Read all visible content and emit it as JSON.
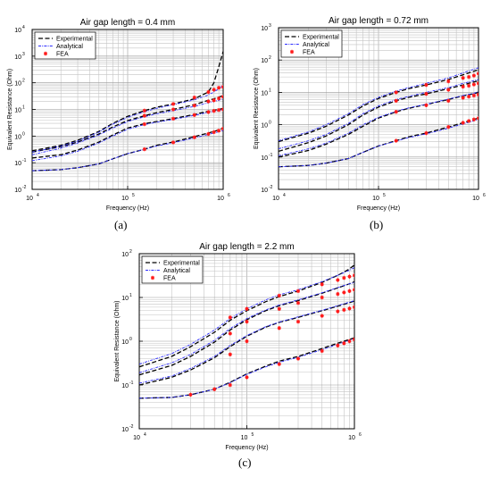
{
  "figure": {
    "panels": [
      {
        "caption": "(a)"
      },
      {
        "caption": "(b)"
      },
      {
        "caption": "(c)"
      }
    ]
  },
  "chart_data": [
    {
      "type": "line",
      "title": "Air gap length = 0.4 mm",
      "xlabel": "Frequency (Hz)",
      "ylabel": "Equivalent Resistance (Ohm)",
      "x_scale": "log",
      "y_scale": "log",
      "xlim": [
        10000,
        1000000
      ],
      "ylim": [
        0.01,
        10000
      ],
      "x_ticks": [
        {
          "value": 10000,
          "base": "10",
          "exp": "4"
        },
        {
          "value": 100000,
          "base": "10",
          "exp": "5"
        },
        {
          "value": 1000000,
          "base": "10",
          "exp": "6"
        }
      ],
      "y_ticks": [
        {
          "value": 0.01,
          "base": "10",
          "exp": "-2"
        },
        {
          "value": 0.1,
          "base": "10",
          "exp": "-1"
        },
        {
          "value": 1,
          "base": "10",
          "exp": "0"
        },
        {
          "value": 10,
          "base": "10",
          "exp": "1"
        },
        {
          "value": 100,
          "base": "10",
          "exp": "2"
        },
        {
          "value": 1000,
          "base": "10",
          "exp": "3"
        },
        {
          "value": 10000,
          "base": "10",
          "exp": "4"
        }
      ],
      "grid": true,
      "legend": {
        "position": "top-left",
        "entries": [
          "Experimental",
          "Analytical",
          "FEA"
        ]
      },
      "colors": {
        "experimental": "#000000",
        "analytical": "#2b2bff",
        "fea": "#ff1a1a"
      },
      "x": [
        10000,
        20000,
        30000,
        50000,
        70000,
        100000,
        150000,
        200000,
        300000,
        500000,
        700000,
        800000,
        900000,
        1000000
      ],
      "series": [
        {
          "name": "Experimental",
          "curve": 1,
          "values": [
            0.28,
            0.45,
            0.7,
            1.5,
            3,
            5.5,
            9,
            12,
            16,
            25,
            45,
            100,
            400,
            1500
          ]
        },
        {
          "name": "Experimental",
          "curve": 2,
          "values": [
            0.25,
            0.4,
            0.6,
            1.2,
            2.2,
            3.8,
            5.8,
            7.5,
            10,
            15,
            22,
            25,
            29,
            33
          ]
        },
        {
          "name": "Experimental",
          "curve": 3,
          "values": [
            0.15,
            0.2,
            0.3,
            0.6,
            1.1,
            2,
            2.9,
            3.5,
            4.5,
            6.5,
            8.5,
            9.3,
            10,
            11
          ]
        },
        {
          "name": "Experimental",
          "curve": 4,
          "values": [
            0.05,
            0.055,
            0.065,
            0.09,
            0.14,
            0.22,
            0.32,
            0.45,
            0.6,
            0.95,
            1.3,
            1.5,
            1.7,
            2
          ]
        },
        {
          "name": "Analytical",
          "curve": 1,
          "values": [
            0.25,
            0.42,
            0.65,
            1.4,
            2.8,
            5,
            8.2,
            11,
            15,
            23,
            35,
            45,
            60,
            80
          ]
        },
        {
          "name": "Analytical",
          "curve": 2,
          "values": [
            0.2,
            0.35,
            0.55,
            1.1,
            2,
            3.5,
            5.3,
            6.8,
            9,
            13,
            18,
            20,
            22,
            25
          ]
        },
        {
          "name": "Analytical",
          "curve": 3,
          "values": [
            0.12,
            0.18,
            0.27,
            0.55,
            1,
            1.8,
            2.7,
            3.3,
            4.2,
            6,
            7.8,
            8.5,
            9.2,
            10
          ]
        },
        {
          "name": "Analytical",
          "curve": 4,
          "values": [
            0.05,
            0.055,
            0.065,
            0.09,
            0.14,
            0.22,
            0.32,
            0.42,
            0.56,
            0.85,
            1.15,
            1.3,
            1.45,
            1.6
          ]
        },
        {
          "name": "FEA",
          "curve": 1,
          "x": [
            150000,
            300000,
            500000,
            700000,
            800000,
            900000,
            1000000
          ],
          "values": [
            9,
            16,
            28,
            45,
            55,
            65,
            70
          ]
        },
        {
          "name": "FEA",
          "curve": 2,
          "x": [
            150000,
            300000,
            500000,
            700000,
            800000,
            900000,
            1000000
          ],
          "values": [
            5.8,
            10,
            14,
            20,
            22,
            26,
            30
          ]
        },
        {
          "name": "FEA",
          "curve": 3,
          "x": [
            150000,
            300000,
            500000,
            700000,
            800000,
            900000,
            1000000
          ],
          "values": [
            2.8,
            4.5,
            6.2,
            8,
            8.8,
            9.5,
            10
          ]
        },
        {
          "name": "FEA",
          "curve": 4,
          "x": [
            150000,
            300000,
            500000,
            700000,
            800000,
            900000,
            1000000
          ],
          "values": [
            0.32,
            0.58,
            0.9,
            1.2,
            1.4,
            1.6,
            1.9
          ]
        }
      ]
    },
    {
      "type": "line",
      "title": "Air gap length = 0.72 mm",
      "xlabel": "Frequency (Hz)",
      "ylabel": "Equivalent Resistance (Ohm)",
      "x_scale": "log",
      "y_scale": "log",
      "xlim": [
        10000,
        1000000
      ],
      "ylim": [
        0.01,
        1000
      ],
      "x_ticks": [
        {
          "value": 10000,
          "base": "10",
          "exp": "4"
        },
        {
          "value": 100000,
          "base": "10",
          "exp": "5"
        },
        {
          "value": 1000000,
          "base": "10",
          "exp": "6"
        }
      ],
      "y_ticks": [
        {
          "value": 0.01,
          "base": "10",
          "exp": "-2"
        },
        {
          "value": 0.1,
          "base": "10",
          "exp": "-1"
        },
        {
          "value": 1,
          "base": "10",
          "exp": "0"
        },
        {
          "value": 10,
          "base": "10",
          "exp": "1"
        },
        {
          "value": 100,
          "base": "10",
          "exp": "2"
        },
        {
          "value": 1000,
          "base": "10",
          "exp": "3"
        }
      ],
      "grid": true,
      "legend": {
        "position": "top-left",
        "entries": [
          "Experimental",
          "Analytical",
          "FEA"
        ]
      },
      "colors": {
        "experimental": "#000000",
        "analytical": "#2b2bff",
        "fea": "#ff1a1a"
      },
      "x": [
        10000,
        20000,
        30000,
        50000,
        70000,
        100000,
        150000,
        200000,
        300000,
        500000,
        700000,
        800000,
        900000,
        1000000
      ],
      "series": [
        {
          "name": "Experimental",
          "curve": 1,
          "values": [
            0.3,
            0.55,
            0.9,
            2,
            3.8,
            6.5,
            10,
            13,
            17,
            25,
            35,
            40,
            45,
            50
          ]
        },
        {
          "name": "Experimental",
          "curve": 2,
          "values": [
            0.15,
            0.28,
            0.45,
            1,
            2,
            3.5,
            5.5,
            7,
            9,
            13,
            17,
            19,
            21,
            23
          ]
        },
        {
          "name": "Experimental",
          "curve": 3,
          "values": [
            0.1,
            0.16,
            0.25,
            0.5,
            0.9,
            1.6,
            2.5,
            3.2,
            4.2,
            6,
            7.8,
            8.5,
            9.2,
            10
          ]
        },
        {
          "name": "Experimental",
          "curve": 4,
          "values": [
            0.05,
            0.055,
            0.065,
            0.09,
            0.14,
            0.22,
            0.32,
            0.42,
            0.55,
            0.85,
            1.15,
            1.3,
            1.45,
            1.6
          ]
        },
        {
          "name": "Analytical",
          "curve": 1,
          "values": [
            0.32,
            0.6,
            1,
            2.2,
            4.2,
            7,
            11,
            14,
            19,
            28,
            40,
            46,
            52,
            58
          ]
        },
        {
          "name": "Analytical",
          "curve": 2,
          "values": [
            0.18,
            0.32,
            0.5,
            1.1,
            2.2,
            3.8,
            6,
            7.5,
            10,
            14,
            19,
            21,
            23,
            25
          ]
        },
        {
          "name": "Analytical",
          "curve": 3,
          "values": [
            0.11,
            0.18,
            0.27,
            0.55,
            1,
            1.7,
            2.6,
            3.3,
            4.3,
            6.2,
            8,
            8.7,
            9.4,
            10.5
          ]
        },
        {
          "name": "Analytical",
          "curve": 4,
          "values": [
            0.05,
            0.055,
            0.065,
            0.09,
            0.14,
            0.22,
            0.31,
            0.4,
            0.52,
            0.78,
            1.05,
            1.18,
            1.32,
            1.45
          ]
        },
        {
          "name": "FEA",
          "curve": 1,
          "x": [
            150000,
            300000,
            500000,
            700000,
            800000,
            900000,
            1000000
          ],
          "values": [
            10,
            17,
            22,
            28,
            30,
            33,
            38
          ]
        },
        {
          "name": "FEA",
          "curve": 2,
          "x": [
            150000,
            300000,
            500000,
            700000,
            800000,
            900000,
            1000000
          ],
          "values": [
            5.5,
            9,
            12,
            15,
            16,
            17.5,
            19
          ]
        },
        {
          "name": "FEA",
          "curve": 3,
          "x": [
            150000,
            300000,
            500000,
            700000,
            800000,
            900000,
            1000000
          ],
          "values": [
            2.5,
            4,
            5.5,
            6.8,
            7.4,
            8,
            8.5
          ]
        },
        {
          "name": "FEA",
          "curve": 4,
          "x": [
            150000,
            300000,
            500000,
            700000,
            800000,
            900000,
            1000000
          ],
          "values": [
            0.32,
            0.55,
            0.85,
            1.15,
            1.3,
            1.45,
            1.6
          ]
        }
      ]
    },
    {
      "type": "line",
      "title": "Air gap length = 2.2 mm",
      "xlabel": "Frequency (Hz)",
      "ylabel": "Equivalent Resistance (Ohm)",
      "x_scale": "log",
      "y_scale": "log",
      "xlim": [
        10000,
        1000000
      ],
      "ylim": [
        0.01,
        100
      ],
      "x_ticks": [
        {
          "value": 10000,
          "base": "10",
          "exp": "4"
        },
        {
          "value": 100000,
          "base": "10",
          "exp": "5"
        },
        {
          "value": 1000000,
          "base": "10",
          "exp": "6"
        }
      ],
      "y_ticks": [
        {
          "value": 0.01,
          "base": "10",
          "exp": "-2"
        },
        {
          "value": 0.1,
          "base": "10",
          "exp": "-1"
        },
        {
          "value": 1,
          "base": "10",
          "exp": "0"
        },
        {
          "value": 10,
          "base": "10",
          "exp": "1"
        },
        {
          "value": 100,
          "base": "10",
          "exp": "2"
        }
      ],
      "grid": true,
      "legend": {
        "position": "top-left",
        "entries": [
          "Experimental",
          "Analytical",
          "FEA"
        ]
      },
      "colors": {
        "experimental": "#000000",
        "analytical": "#2b2bff",
        "fea": "#ff1a1a"
      },
      "x": [
        10000,
        20000,
        30000,
        50000,
        70000,
        100000,
        150000,
        200000,
        300000,
        500000,
        700000,
        800000,
        900000,
        1000000
      ],
      "series": [
        {
          "name": "Experimental",
          "curve": 1,
          "values": [
            0.26,
            0.45,
            0.75,
            1.6,
            3,
            5,
            8,
            10.5,
            14,
            22,
            32,
            38,
            45,
            55
          ]
        },
        {
          "name": "Experimental",
          "curve": 2,
          "values": [
            0.17,
            0.28,
            0.45,
            0.95,
            1.8,
            3.1,
            5,
            6.5,
            8.5,
            12.5,
            16.5,
            18.5,
            20.5,
            23
          ]
        },
        {
          "name": "Experimental",
          "curve": 3,
          "values": [
            0.1,
            0.15,
            0.22,
            0.42,
            0.75,
            1.3,
            2.1,
            2.7,
            3.5,
            5,
            6.3,
            7,
            7.6,
            8.3
          ]
        },
        {
          "name": "Experimental",
          "curve": 4,
          "values": [
            0.05,
            0.052,
            0.06,
            0.08,
            0.115,
            0.18,
            0.27,
            0.35,
            0.45,
            0.68,
            0.9,
            1,
            1.1,
            1.2
          ]
        },
        {
          "name": "Analytical",
          "curve": 1,
          "values": [
            0.3,
            0.52,
            0.85,
            1.8,
            3.3,
            5.5,
            8.8,
            11.5,
            15,
            23,
            32,
            37,
            42,
            48
          ]
        },
        {
          "name": "Analytical",
          "curve": 2,
          "values": [
            0.19,
            0.32,
            0.5,
            1.05,
            1.95,
            3.3,
            5.2,
            6.7,
            8.8,
            12.8,
            16.8,
            18.8,
            20.5,
            22
          ]
        },
        {
          "name": "Analytical",
          "curve": 3,
          "values": [
            0.11,
            0.16,
            0.24,
            0.45,
            0.8,
            1.35,
            2.15,
            2.75,
            3.6,
            5.1,
            6.5,
            7.2,
            7.8,
            8.5
          ]
        },
        {
          "name": "Analytical",
          "curve": 4,
          "values": [
            0.05,
            0.052,
            0.06,
            0.08,
            0.113,
            0.175,
            0.26,
            0.33,
            0.43,
            0.64,
            0.85,
            0.95,
            1.05,
            1.15
          ]
        },
        {
          "name": "FEA",
          "curve": 1,
          "x": [
            70000,
            100000,
            200000,
            300000,
            500000,
            700000,
            800000,
            900000,
            1000000
          ],
          "values": [
            3.5,
            5.5,
            11,
            14,
            20,
            25,
            28,
            30,
            32
          ]
        },
        {
          "name": "FEA",
          "curve": 2,
          "x": [
            70000,
            100000,
            200000,
            300000,
            500000,
            700000,
            800000,
            900000,
            1000000
          ],
          "values": [
            1.5,
            2.8,
            5.5,
            7.5,
            10,
            12,
            13,
            14,
            15
          ]
        },
        {
          "name": "FEA",
          "curve": 3,
          "x": [
            70000,
            100000,
            200000,
            300000,
            500000,
            700000,
            800000,
            900000,
            1000000
          ],
          "values": [
            0.5,
            1,
            2,
            2.8,
            3.8,
            4.8,
            5.2,
            5.6,
            6
          ]
        },
        {
          "name": "FEA",
          "curve": 4,
          "x": [
            30000,
            50000,
            70000,
            100000,
            200000,
            300000,
            500000,
            700000,
            800000,
            900000,
            1000000
          ],
          "values": [
            0.06,
            0.08,
            0.1,
            0.15,
            0.3,
            0.4,
            0.6,
            0.8,
            0.9,
            1,
            1.1
          ]
        }
      ]
    }
  ]
}
